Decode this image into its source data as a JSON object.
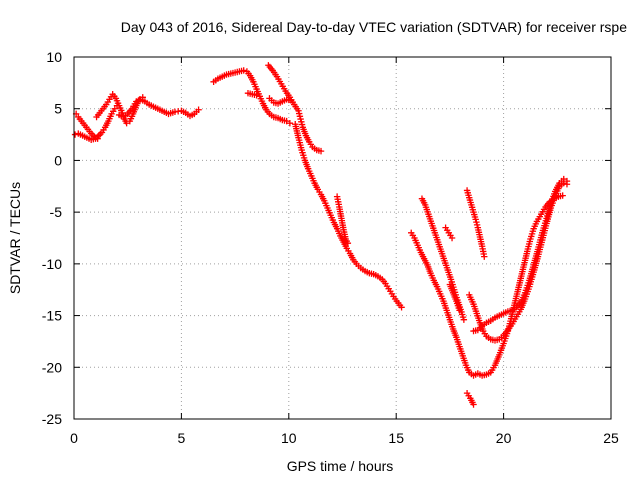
{
  "chart_data": {
    "type": "scatter",
    "title": "Day 043 of 2016, Sidereal Day-to-day VTEC variation (SDTVAR) for receiver rspe",
    "xlabel": "GPS time / hours",
    "ylabel": "SDTVAR / TECUs",
    "xlim": [
      0,
      25
    ],
    "ylim": [
      -25,
      10
    ],
    "x_ticks": [
      0,
      5,
      10,
      15,
      20,
      25
    ],
    "y_ticks": [
      10,
      5,
      0,
      -5,
      -10,
      -15,
      -20,
      -25
    ],
    "grid": true,
    "marker": "+",
    "color": "#ff0000",
    "series": [
      {
        "points": [
          [
            0.1,
            4.5
          ],
          [
            0.2,
            4.2
          ],
          [
            0.35,
            3.8
          ],
          [
            0.5,
            3.4
          ],
          [
            0.65,
            3.0
          ],
          [
            0.8,
            2.6
          ],
          [
            0.95,
            2.3
          ],
          [
            1.1,
            2.1
          ]
        ]
      },
      {
        "points": [
          [
            0.05,
            2.5
          ],
          [
            0.2,
            2.6
          ],
          [
            0.4,
            2.4
          ],
          [
            0.6,
            2.2
          ],
          [
            0.8,
            2.0
          ],
          [
            1.0,
            2.1
          ],
          [
            1.15,
            2.4
          ],
          [
            1.3,
            2.7
          ],
          [
            1.45,
            3.2
          ],
          [
            1.6,
            3.8
          ],
          [
            1.75,
            4.5
          ],
          [
            1.9,
            5.0
          ],
          [
            2.0,
            5.3
          ]
        ]
      },
      {
        "points": [
          [
            1.05,
            4.2
          ],
          [
            1.2,
            4.6
          ],
          [
            1.35,
            5.0
          ],
          [
            1.5,
            5.4
          ],
          [
            1.65,
            5.9
          ],
          [
            1.8,
            6.4
          ],
          [
            1.95,
            6.0
          ],
          [
            2.1,
            5.3
          ],
          [
            2.25,
            4.6
          ],
          [
            2.35,
            4.0
          ],
          [
            2.45,
            3.6
          ],
          [
            2.6,
            3.8
          ],
          [
            2.75,
            4.5
          ],
          [
            2.9,
            5.3
          ],
          [
            3.05,
            5.9
          ],
          [
            3.2,
            6.1
          ]
        ]
      },
      {
        "points": [
          [
            2.1,
            4.4
          ],
          [
            2.3,
            4.2
          ],
          [
            2.5,
            4.5
          ],
          [
            2.7,
            5.0
          ],
          [
            2.9,
            5.7
          ],
          [
            3.1,
            5.9
          ],
          [
            3.3,
            5.7
          ],
          [
            3.5,
            5.4
          ],
          [
            3.8,
            5.1
          ],
          [
            4.1,
            4.8
          ],
          [
            4.4,
            4.5
          ],
          [
            4.7,
            4.7
          ],
          [
            5.0,
            4.8
          ],
          [
            5.2,
            4.6
          ],
          [
            5.4,
            4.3
          ],
          [
            5.6,
            4.5
          ],
          [
            5.8,
            4.9
          ]
        ]
      },
      {
        "points": [
          [
            6.5,
            7.6
          ],
          [
            6.7,
            7.9
          ],
          [
            6.9,
            8.1
          ],
          [
            7.1,
            8.3
          ],
          [
            7.3,
            8.4
          ],
          [
            7.5,
            8.5
          ],
          [
            7.7,
            8.6
          ],
          [
            7.9,
            8.7
          ],
          [
            8.05,
            8.6
          ],
          [
            8.2,
            8.2
          ],
          [
            8.35,
            7.6
          ],
          [
            8.5,
            6.9
          ],
          [
            8.65,
            6.2
          ],
          [
            8.8,
            5.5
          ],
          [
            8.95,
            4.9
          ],
          [
            9.1,
            4.5
          ],
          [
            9.3,
            4.2
          ],
          [
            9.5,
            4.1
          ],
          [
            9.7,
            3.9
          ],
          [
            9.9,
            3.8
          ],
          [
            10.05,
            3.6
          ]
        ]
      },
      {
        "points": [
          [
            8.1,
            6.5
          ],
          [
            8.3,
            6.4
          ],
          [
            8.5,
            6.3
          ]
        ]
      },
      {
        "points": [
          [
            9.05,
            9.2
          ],
          [
            9.25,
            8.7
          ],
          [
            9.45,
            8.1
          ],
          [
            9.65,
            7.4
          ],
          [
            9.85,
            6.7
          ],
          [
            10.05,
            6.1
          ],
          [
            10.25,
            5.4
          ],
          [
            10.45,
            4.8
          ],
          [
            10.55,
            4.0
          ],
          [
            10.65,
            3.2
          ],
          [
            10.8,
            2.4
          ],
          [
            10.95,
            1.8
          ],
          [
            11.1,
            1.3
          ],
          [
            11.3,
            1.0
          ],
          [
            11.5,
            0.9
          ]
        ]
      },
      {
        "points": [
          [
            9.1,
            6.0
          ],
          [
            9.3,
            5.6
          ],
          [
            9.5,
            5.5
          ],
          [
            9.7,
            5.7
          ],
          [
            9.9,
            5.9
          ],
          [
            10.1,
            5.8
          ]
        ]
      },
      {
        "points": [
          [
            10.3,
            3.5
          ],
          [
            10.45,
            2.2
          ],
          [
            10.6,
            1.0
          ],
          [
            10.75,
            0.0
          ],
          [
            10.9,
            -0.8
          ],
          [
            11.05,
            -1.5
          ],
          [
            11.2,
            -2.2
          ],
          [
            11.35,
            -2.8
          ],
          [
            11.5,
            -3.3
          ],
          [
            11.65,
            -3.9
          ],
          [
            11.8,
            -4.6
          ],
          [
            11.95,
            -5.3
          ],
          [
            12.1,
            -6.0
          ],
          [
            12.25,
            -6.6
          ],
          [
            12.4,
            -7.3
          ],
          [
            12.55,
            -7.9
          ],
          [
            12.7,
            -8.5
          ],
          [
            12.85,
            -9.0
          ],
          [
            13.0,
            -9.6
          ],
          [
            13.15,
            -10.0
          ],
          [
            13.35,
            -10.4
          ],
          [
            13.55,
            -10.7
          ],
          [
            13.75,
            -10.9
          ],
          [
            13.95,
            -11.0
          ],
          [
            14.15,
            -11.2
          ],
          [
            14.35,
            -11.5
          ],
          [
            14.5,
            -11.9
          ],
          [
            14.65,
            -12.4
          ],
          [
            14.8,
            -12.9
          ],
          [
            14.95,
            -13.4
          ],
          [
            15.1,
            -13.8
          ],
          [
            15.25,
            -14.2
          ]
        ]
      },
      {
        "points": [
          [
            12.25,
            -3.5
          ],
          [
            12.35,
            -4.5
          ],
          [
            12.45,
            -5.6
          ],
          [
            12.55,
            -6.7
          ],
          [
            12.65,
            -7.6
          ],
          [
            12.75,
            -8.0
          ]
        ]
      },
      {
        "points": [
          [
            15.7,
            -7.0
          ],
          [
            15.85,
            -7.5
          ],
          [
            16.0,
            -8.2
          ],
          [
            16.15,
            -8.9
          ],
          [
            16.3,
            -9.5
          ],
          [
            16.45,
            -10.1
          ],
          [
            16.6,
            -10.9
          ],
          [
            16.75,
            -11.6
          ],
          [
            16.9,
            -12.2
          ],
          [
            17.05,
            -12.9
          ],
          [
            17.2,
            -13.6
          ],
          [
            17.35,
            -14.5
          ],
          [
            17.5,
            -15.4
          ],
          [
            17.65,
            -16.3
          ],
          [
            17.8,
            -17.1
          ],
          [
            17.95,
            -18.0
          ],
          [
            18.1,
            -18.9
          ],
          [
            18.25,
            -19.8
          ],
          [
            18.4,
            -20.5
          ],
          [
            18.6,
            -20.8
          ],
          [
            18.8,
            -20.6
          ],
          [
            19.0,
            -20.8
          ],
          [
            19.2,
            -20.7
          ],
          [
            19.4,
            -20.5
          ],
          [
            19.6,
            -19.8
          ],
          [
            19.8,
            -18.8
          ],
          [
            20.0,
            -17.7
          ],
          [
            20.2,
            -16.5
          ],
          [
            20.35,
            -15.3
          ],
          [
            20.5,
            -14.0
          ],
          [
            20.65,
            -12.7
          ],
          [
            20.8,
            -11.4
          ],
          [
            20.95,
            -10.1
          ],
          [
            21.1,
            -8.8
          ],
          [
            21.25,
            -7.6
          ],
          [
            21.4,
            -6.6
          ],
          [
            21.55,
            -5.9
          ],
          [
            21.75,
            -5.2
          ],
          [
            21.95,
            -4.5
          ],
          [
            22.15,
            -4.0
          ],
          [
            22.35,
            -3.7
          ],
          [
            22.55,
            -3.5
          ],
          [
            22.75,
            -3.4
          ]
        ]
      },
      {
        "points": [
          [
            16.2,
            -3.7
          ],
          [
            16.35,
            -4.3
          ],
          [
            16.5,
            -5.2
          ],
          [
            16.65,
            -6.1
          ],
          [
            16.8,
            -7.0
          ],
          [
            16.95,
            -7.9
          ],
          [
            17.1,
            -8.8
          ],
          [
            17.25,
            -9.7
          ],
          [
            17.4,
            -10.6
          ],
          [
            17.55,
            -11.5
          ],
          [
            17.7,
            -12.5
          ],
          [
            17.85,
            -13.5
          ],
          [
            18.0,
            -14.4
          ],
          [
            18.15,
            -15.4
          ]
        ]
      },
      {
        "points": [
          [
            17.3,
            -6.5
          ],
          [
            17.45,
            -7.0
          ],
          [
            17.6,
            -7.5
          ]
        ]
      },
      {
        "points": [
          [
            17.5,
            -12.0
          ],
          [
            17.65,
            -12.8
          ],
          [
            17.8,
            -13.6
          ],
          [
            17.95,
            -14.5
          ]
        ]
      },
      {
        "points": [
          [
            18.3,
            -2.9
          ],
          [
            18.4,
            -3.6
          ],
          [
            18.5,
            -4.3
          ],
          [
            18.6,
            -5.0
          ],
          [
            18.7,
            -5.7
          ],
          [
            18.8,
            -6.5
          ],
          [
            18.9,
            -7.4
          ],
          [
            19.0,
            -8.3
          ],
          [
            19.1,
            -9.3
          ]
        ]
      },
      {
        "points": [
          [
            18.4,
            -13.0
          ],
          [
            18.6,
            -13.9
          ],
          [
            18.75,
            -14.8
          ],
          [
            18.9,
            -15.7
          ],
          [
            19.05,
            -16.5
          ],
          [
            19.2,
            -17.0
          ],
          [
            19.4,
            -17.3
          ],
          [
            19.6,
            -17.4
          ],
          [
            19.8,
            -17.3
          ],
          [
            20.0,
            -16.9
          ],
          [
            20.2,
            -16.4
          ],
          [
            20.4,
            -15.8
          ],
          [
            20.6,
            -15.1
          ],
          [
            20.8,
            -14.4
          ],
          [
            21.0,
            -13.4
          ],
          [
            21.2,
            -12.2
          ],
          [
            21.4,
            -10.8
          ],
          [
            21.6,
            -9.3
          ],
          [
            21.8,
            -7.7
          ],
          [
            22.0,
            -6.1
          ],
          [
            22.2,
            -4.6
          ],
          [
            22.4,
            -3.4
          ],
          [
            22.6,
            -2.5
          ],
          [
            22.8,
            -2.2
          ],
          [
            22.95,
            -2.3
          ]
        ]
      },
      {
        "points": [
          [
            18.6,
            -16.5
          ],
          [
            18.8,
            -16.4
          ],
          [
            19.0,
            -16.0
          ],
          [
            19.2,
            -15.7
          ],
          [
            19.4,
            -15.5
          ],
          [
            19.6,
            -15.2
          ],
          [
            19.8,
            -15.0
          ],
          [
            20.0,
            -14.8
          ],
          [
            20.2,
            -14.6
          ],
          [
            20.4,
            -14.5
          ],
          [
            20.6,
            -14.2
          ],
          [
            20.8,
            -13.7
          ],
          [
            21.0,
            -12.8
          ],
          [
            21.2,
            -11.6
          ],
          [
            21.4,
            -10.1
          ],
          [
            21.6,
            -8.6
          ],
          [
            21.8,
            -7.0
          ],
          [
            22.0,
            -5.6
          ],
          [
            22.2,
            -4.2
          ],
          [
            22.4,
            -3.0
          ],
          [
            22.6,
            -2.2
          ],
          [
            22.8,
            -1.8
          ],
          [
            22.95,
            -2.0
          ]
        ]
      },
      {
        "points": [
          [
            18.3,
            -22.5
          ],
          [
            18.45,
            -23.0
          ],
          [
            18.6,
            -23.6
          ]
        ]
      }
    ]
  }
}
